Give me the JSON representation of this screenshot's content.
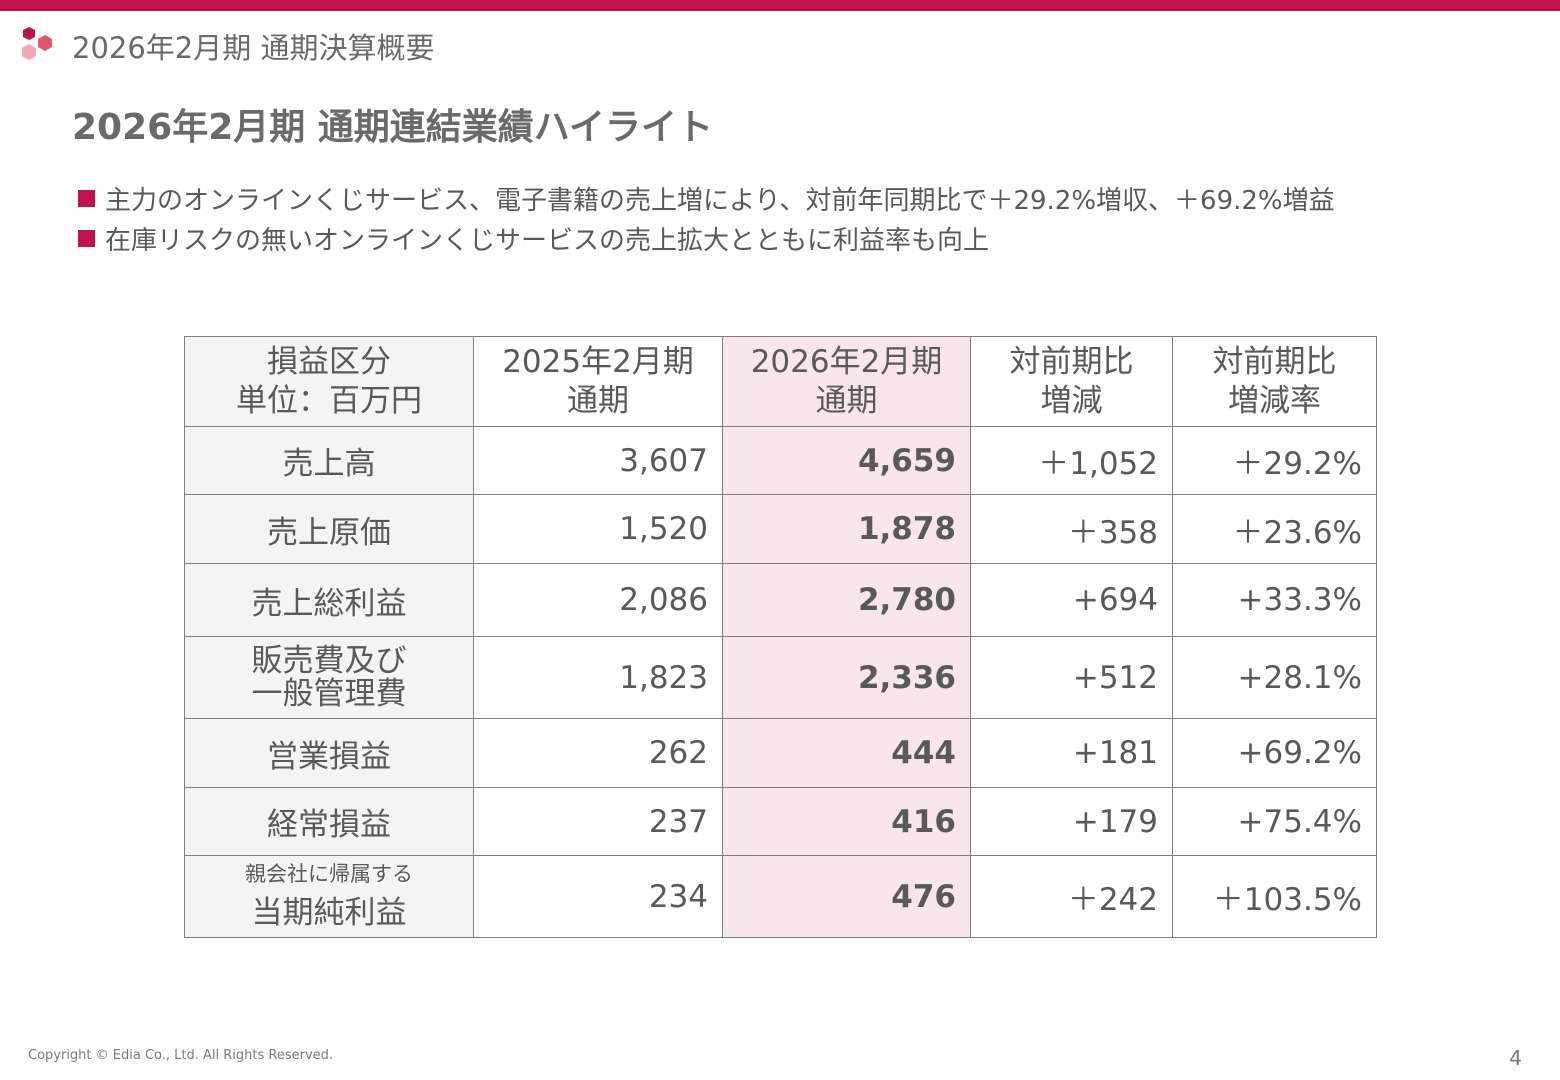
{
  "colors": {
    "accent": "#c0134b",
    "highlight_column": "#f9e5ec",
    "label_column": "#f4f4f4",
    "text": "#595959"
  },
  "header": {
    "logo_icon": "hexagon-logo-icon",
    "title": "2026年2月期 通期決算概要"
  },
  "slide_title": "2026年2月期 通期連結業績ハイライト",
  "bullets": [
    "主力のオンラインくじサービス、電子書籍の売上増により、対前年同期比で＋29.2%増収、＋69.2%増益",
    "在庫リスクの無いオンラインくじサービスの売上拡大とともに利益率も向上"
  ],
  "table": {
    "headers": [
      {
        "line1": "損益区分",
        "line2": "単位：百万円"
      },
      {
        "line1": "2025年2月期",
        "line2": "通期"
      },
      {
        "line1": "2026年2月期",
        "line2": "通期"
      },
      {
        "line1": "対前期比",
        "line2": "増減"
      },
      {
        "line1": "対前期比",
        "line2": "増減率"
      }
    ],
    "rows": [
      {
        "label": "売上高",
        "prev": "3,607",
        "curr": "4,659",
        "diff": "＋1,052",
        "rate": "＋29.2%"
      },
      {
        "label": "売上原価",
        "prev": "1,520",
        "curr": "1,878",
        "diff": "＋358",
        "rate": "＋23.6%"
      },
      {
        "label": "売上総利益",
        "prev": "2,086",
        "curr": "2,780",
        "diff": "+694",
        "rate": "+33.3%"
      },
      {
        "label_line1": "販売費及び",
        "label_line2": "一般管理費",
        "prev": "1,823",
        "curr": "2,336",
        "diff": "+512",
        "rate": "+28.1%"
      },
      {
        "label": "営業損益",
        "prev": "262",
        "curr": "444",
        "diff": "+181",
        "rate": "+69.2%"
      },
      {
        "label": "経常損益",
        "prev": "237",
        "curr": "416",
        "diff": "+179",
        "rate": "+75.4%"
      },
      {
        "label_line1": "親会社に帰属する",
        "label_line2": "当期純利益",
        "prev": "234",
        "curr": "476",
        "diff": "＋242",
        "rate": "＋103.5%"
      }
    ]
  },
  "footer": {
    "copyright": "Copyright © Edia Co., Ltd. All Rights Reserved.",
    "page_number": "4"
  }
}
